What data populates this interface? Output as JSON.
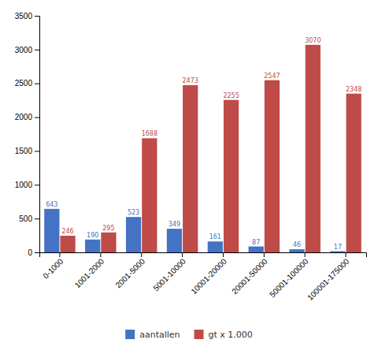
{
  "chart_data": {
    "type": "bar",
    "categories": [
      "0-1000",
      "1001-2000",
      "2001-5000",
      "5001-10000",
      "10001-20000",
      "20001-50000",
      "50001-100000",
      "100001-175000"
    ],
    "series": [
      {
        "name": "aantallen",
        "color": "#4472C4",
        "values": [
          643,
          190,
          523,
          349,
          161,
          87,
          46,
          17
        ]
      },
      {
        "name": "gt x 1.000",
        "color": "#BE4B48",
        "values": [
          246,
          295,
          1688,
          2473,
          2255,
          2547,
          3070,
          2348
        ]
      }
    ],
    "ylim": [
      0,
      3500
    ],
    "yticks": [
      0,
      500,
      1000,
      1500,
      2000,
      2500,
      3000,
      3500
    ],
    "grid": false,
    "data_labels": true,
    "legend": "bottom"
  }
}
